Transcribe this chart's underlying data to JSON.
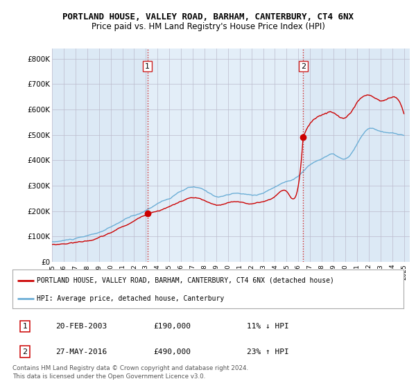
{
  "title": "PORTLAND HOUSE, VALLEY ROAD, BARHAM, CANTERBURY, CT4 6NX",
  "subtitle": "Price paid vs. HM Land Registry's House Price Index (HPI)",
  "ylabel_ticks": [
    "£0",
    "£100K",
    "£200K",
    "£300K",
    "£400K",
    "£500K",
    "£600K",
    "£700K",
    "£800K"
  ],
  "ytick_values": [
    0,
    100000,
    200000,
    300000,
    400000,
    500000,
    600000,
    700000,
    800000
  ],
  "ylim": [
    0,
    840000
  ],
  "xlim_start": 1995.0,
  "xlim_end": 2025.5,
  "purchase1_x": 2003.13,
  "purchase1_y": 190000,
  "purchase1_label": "1",
  "purchase2_x": 2016.41,
  "purchase2_y": 490000,
  "purchase2_label": "2",
  "hpi_color": "#6baed6",
  "price_color": "#cc0000",
  "vline_color": "#cc2222",
  "background_color": "#ffffff",
  "plot_bg_color": "#dce9f5",
  "highlight_bg_color": "#e8f2fb",
  "grid_color": "#bbbbcc",
  "legend_line1": "PORTLAND HOUSE, VALLEY ROAD, BARHAM, CANTERBURY, CT4 6NX (detached house)",
  "legend_line2": "HPI: Average price, detached house, Canterbury",
  "table_row1": [
    "1",
    "20-FEB-2003",
    "£190,000",
    "11% ↓ HPI"
  ],
  "table_row2": [
    "2",
    "27-MAY-2016",
    "£490,000",
    "23% ↑ HPI"
  ],
  "footnote": "Contains HM Land Registry data © Crown copyright and database right 2024.\nThis data is licensed under the Open Government Licence v3.0."
}
